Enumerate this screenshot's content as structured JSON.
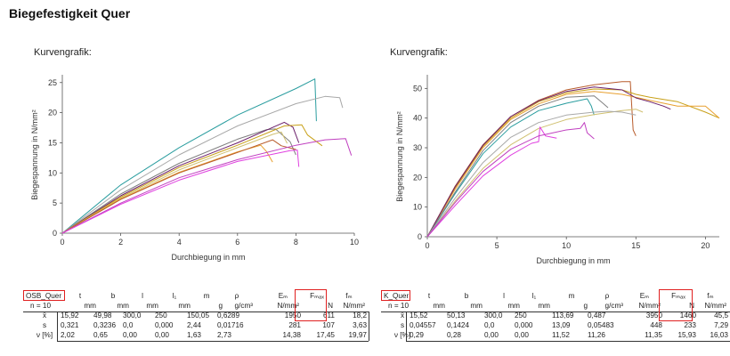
{
  "page": {
    "title": "Biegefestigkeit Quer"
  },
  "charts_header": [
    "Kurvengrafik:",
    "Kurvengrafik:"
  ],
  "chart_data": [
    {
      "type": "line",
      "title": "",
      "xlabel": "Durchbiegung in mm",
      "ylabel": "Biegespannung in N/mm²",
      "xlim": [
        0,
        10
      ],
      "ylim": [
        0,
        26
      ],
      "xticks": [
        0,
        2,
        4,
        6,
        8,
        10
      ],
      "yticks": [
        0,
        5,
        10,
        15,
        20,
        25
      ],
      "series": [
        {
          "color": "#2a9d9f",
          "points": [
            [
              0,
              0
            ],
            [
              2,
              8
            ],
            [
              4,
              14.2
            ],
            [
              6,
              19.6
            ],
            [
              8,
              24
            ],
            [
              8.65,
              25.6
            ],
            [
              8.7,
              18.6
            ]
          ]
        },
        {
          "color": "#a8a8a8",
          "points": [
            [
              0,
              0
            ],
            [
              2,
              7.2
            ],
            [
              4,
              13
            ],
            [
              6,
              17.8
            ],
            [
              8,
              21.5
            ],
            [
              9,
              22.7
            ],
            [
              9.5,
              22.5
            ],
            [
              9.6,
              20.8
            ]
          ]
        },
        {
          "color": "#7f7f7f",
          "points": [
            [
              0,
              0
            ],
            [
              2,
              6.5
            ],
            [
              4,
              11.6
            ],
            [
              6,
              15.6
            ],
            [
              7,
              17.2
            ],
            [
              7.3,
              17.3
            ],
            [
              7.8,
              15.2
            ],
            [
              8,
              13
            ]
          ]
        },
        {
          "color": "#6a1e6a",
          "points": [
            [
              0,
              0
            ],
            [
              2,
              6.2
            ],
            [
              4,
              11.2
            ],
            [
              6,
              15
            ],
            [
              6.9,
              16.9
            ],
            [
              7.6,
              18.4
            ],
            [
              7.9,
              17.6
            ],
            [
              8.1,
              15
            ]
          ]
        },
        {
          "color": "#c8a018",
          "points": [
            [
              0,
              0
            ],
            [
              2,
              6
            ],
            [
              4,
              10.9
            ],
            [
              6,
              14.6
            ],
            [
              7.6,
              17.8
            ],
            [
              8.2,
              18
            ],
            [
              8.4,
              16.3
            ],
            [
              8.9,
              14.5
            ]
          ]
        },
        {
          "color": "#d0c070",
          "points": [
            [
              0,
              0
            ],
            [
              2,
              5.8
            ],
            [
              4,
              10.5
            ],
            [
              6,
              14.2
            ],
            [
              7.2,
              16.4
            ],
            [
              7.5,
              16.8
            ],
            [
              7.7,
              14.9
            ]
          ]
        },
        {
          "color": "#e8a030",
          "points": [
            [
              0,
              0
            ],
            [
              2,
              5.7
            ],
            [
              4,
              10.1
            ],
            [
              6,
              13.5
            ],
            [
              6.8,
              14.6
            ],
            [
              7.0,
              13.5
            ],
            [
              7.2,
              11.8
            ]
          ]
        },
        {
          "color": "#b85c2c",
          "points": [
            [
              0,
              0
            ],
            [
              2,
              5.6
            ],
            [
              4,
              10
            ],
            [
              6,
              13.4
            ],
            [
              7.2,
              15.5
            ],
            [
              7.5,
              14.5
            ],
            [
              8,
              13.9
            ]
          ]
        },
        {
          "color": "#c040c0",
          "points": [
            [
              0,
              0
            ],
            [
              2,
              5
            ],
            [
              4,
              9.2
            ],
            [
              6,
              12.2
            ],
            [
              8,
              14.6
            ],
            [
              9,
              15.5
            ],
            [
              9.7,
              15.7
            ],
            [
              9.9,
              12.9
            ]
          ]
        },
        {
          "color": "#e040e0",
          "points": [
            [
              0,
              0
            ],
            [
              2,
              4.8
            ],
            [
              4,
              8.8
            ],
            [
              6,
              11.9
            ],
            [
              7.8,
              13.7
            ],
            [
              8.05,
              13.8
            ],
            [
              8.1,
              11
            ]
          ]
        }
      ]
    },
    {
      "type": "line",
      "title": "",
      "xlabel": "Durchbiegung in mm",
      "ylabel": "Biegespannung in N/mm²",
      "xlim": [
        0,
        21
      ],
      "ylim": [
        0,
        54
      ],
      "xticks": [
        0,
        5,
        10,
        15,
        20
      ],
      "yticks": [
        0,
        10,
        20,
        30,
        40,
        50
      ],
      "series": [
        {
          "color": "#b85c2c",
          "points": [
            [
              0,
              0
            ],
            [
              2,
              17
            ],
            [
              4,
              31
            ],
            [
              6,
              40.5
            ],
            [
              8,
              46
            ],
            [
              10,
              49.5
            ],
            [
              12,
              51.2
            ],
            [
              14,
              52.3
            ],
            [
              14.6,
              52.3
            ],
            [
              14.8,
              36
            ],
            [
              15,
              34
            ]
          ]
        },
        {
          "color": "#c8a018",
          "points": [
            [
              0,
              0
            ],
            [
              2,
              16.5
            ],
            [
              4,
              30.5
            ],
            [
              6,
              40
            ],
            [
              8,
              45.5
            ],
            [
              10,
              48.5
            ],
            [
              12,
              49.8
            ],
            [
              14,
              49.5
            ],
            [
              15,
              48
            ],
            [
              16,
              47
            ],
            [
              18,
              45.5
            ],
            [
              20,
              42
            ],
            [
              21,
              40
            ]
          ]
        },
        {
          "color": "#e8a030",
          "points": [
            [
              0,
              0
            ],
            [
              2,
              16
            ],
            [
              4,
              30
            ],
            [
              6,
              39.5
            ],
            [
              8,
              44.8
            ],
            [
              10,
              48
            ],
            [
              12,
              49
            ],
            [
              14,
              48
            ],
            [
              16,
              46
            ],
            [
              18,
              44
            ],
            [
              20,
              44
            ],
            [
              21,
              40
            ]
          ]
        },
        {
          "color": "#6a1e6a",
          "points": [
            [
              0,
              0
            ],
            [
              2,
              16.8
            ],
            [
              4,
              30.8
            ],
            [
              6,
              40.5
            ],
            [
              8,
              45.8
            ],
            [
              10,
              49
            ],
            [
              12,
              50.5
            ],
            [
              14,
              49.5
            ],
            [
              15,
              46.8
            ],
            [
              16,
              45.5
            ],
            [
              17,
              44
            ],
            [
              17.5,
              43
            ]
          ]
        },
        {
          "color": "#2a9d9f",
          "points": [
            [
              0,
              0
            ],
            [
              2,
              14.5
            ],
            [
              4,
              28
            ],
            [
              6,
              37
            ],
            [
              8,
              42.5
            ],
            [
              10,
              45
            ],
            [
              11.5,
              46.5
            ],
            [
              11.8,
              44
            ],
            [
              12,
              41
            ]
          ]
        },
        {
          "color": "#7f7f7f",
          "points": [
            [
              0,
              0
            ],
            [
              2,
              15
            ],
            [
              4,
              29
            ],
            [
              6,
              38.5
            ],
            [
              8,
              44
            ],
            [
              10,
              47
            ],
            [
              12,
              47.5
            ],
            [
              12.5,
              45.5
            ],
            [
              13,
              43.5
            ]
          ]
        },
        {
          "color": "#d0c070",
          "points": [
            [
              0,
              0
            ],
            [
              2,
              12
            ],
            [
              4,
              23
            ],
            [
              6,
              31
            ],
            [
              8,
              36.5
            ],
            [
              10,
              39.5
            ],
            [
              12,
              41.2
            ],
            [
              14,
              42.5
            ],
            [
              15,
              43
            ],
            [
              15.5,
              42
            ]
          ]
        },
        {
          "color": "#a8a8a8",
          "points": [
            [
              0,
              0
            ],
            [
              2,
              13
            ],
            [
              4,
              25
            ],
            [
              6,
              33.5
            ],
            [
              8,
              38.5
            ],
            [
              10,
              41
            ],
            [
              12,
              42
            ],
            [
              13,
              42.3
            ],
            [
              14,
              42
            ],
            [
              15,
              41
            ]
          ]
        },
        {
          "color": "#e040e0",
          "points": [
            [
              0,
              0
            ],
            [
              2,
              10.5
            ],
            [
              4,
              20.5
            ],
            [
              6,
              27.5
            ],
            [
              7.5,
              31.5
            ],
            [
              8,
              32
            ],
            [
              8.1,
              37
            ],
            [
              8.5,
              34
            ],
            [
              9.3,
              33.2
            ]
          ]
        },
        {
          "color": "#c040c0",
          "points": [
            [
              0,
              0
            ],
            [
              2,
              11.5
            ],
            [
              4,
              22
            ],
            [
              6,
              29.5
            ],
            [
              8,
              34
            ],
            [
              10,
              36
            ],
            [
              11,
              36.5
            ],
            [
              11.3,
              38.5
            ],
            [
              11.5,
              35
            ],
            [
              12,
              33
            ]
          ]
        }
      ]
    }
  ],
  "tables": [
    {
      "name": "OSB_Quer",
      "header": [
        "t",
        "b",
        "l",
        "l₁",
        "m",
        "ρ",
        "Eₘ",
        "Fₘₐₓ",
        "fₘ"
      ],
      "units_label": "n = 10",
      "units": [
        "mm",
        "mm",
        "mm",
        "mm",
        "g",
        "g/cm³",
        "N/mm²",
        "N",
        "N/mm²"
      ],
      "rows": [
        {
          "label": "x̄",
          "values": [
            "15,92",
            "49,98",
            "300,0",
            "250",
            "150,05",
            "0,6289",
            "1950",
            "611",
            "18,2"
          ]
        },
        {
          "label": "s",
          "values": [
            "0,321",
            "0,3236",
            "0,0",
            "0,000",
            "2,44",
            "0,01716",
            "281",
            "107",
            "3,63"
          ]
        },
        {
          "label": "ν [%]",
          "values": [
            "2,02",
            "0,65",
            "0,00",
            "0,00",
            "1,63",
            "2,73",
            "14,38",
            "17,45",
            "19,97"
          ]
        }
      ]
    },
    {
      "name": "K_Quer",
      "header": [
        "t",
        "b",
        "l",
        "l₁",
        "m",
        "ρ",
        "Eₘ",
        "Fₘₐₓ",
        "fₘ"
      ],
      "units_label": "n = 10",
      "units": [
        "mm",
        "mm",
        "mm",
        "mm",
        "g",
        "g/cm³",
        "N/mm²",
        "N",
        "N/mm²"
      ],
      "rows": [
        {
          "label": "x̄",
          "values": [
            "15,52",
            "50,13",
            "300,0",
            "250",
            "113,69",
            "0,487",
            "3950",
            "1460",
            "45,5"
          ]
        },
        {
          "label": "s",
          "values": [
            "0,04557",
            "0,1424",
            "0,0",
            "0,000",
            "13,09",
            "0,05483",
            "448",
            "233",
            "7,29"
          ]
        },
        {
          "label": "ν [%]",
          "values": [
            "0,29",
            "0,28",
            "0,00",
            "0,00",
            "11,52",
            "11,26",
            "11,35",
            "15,93",
            "16,03"
          ]
        }
      ]
    }
  ]
}
